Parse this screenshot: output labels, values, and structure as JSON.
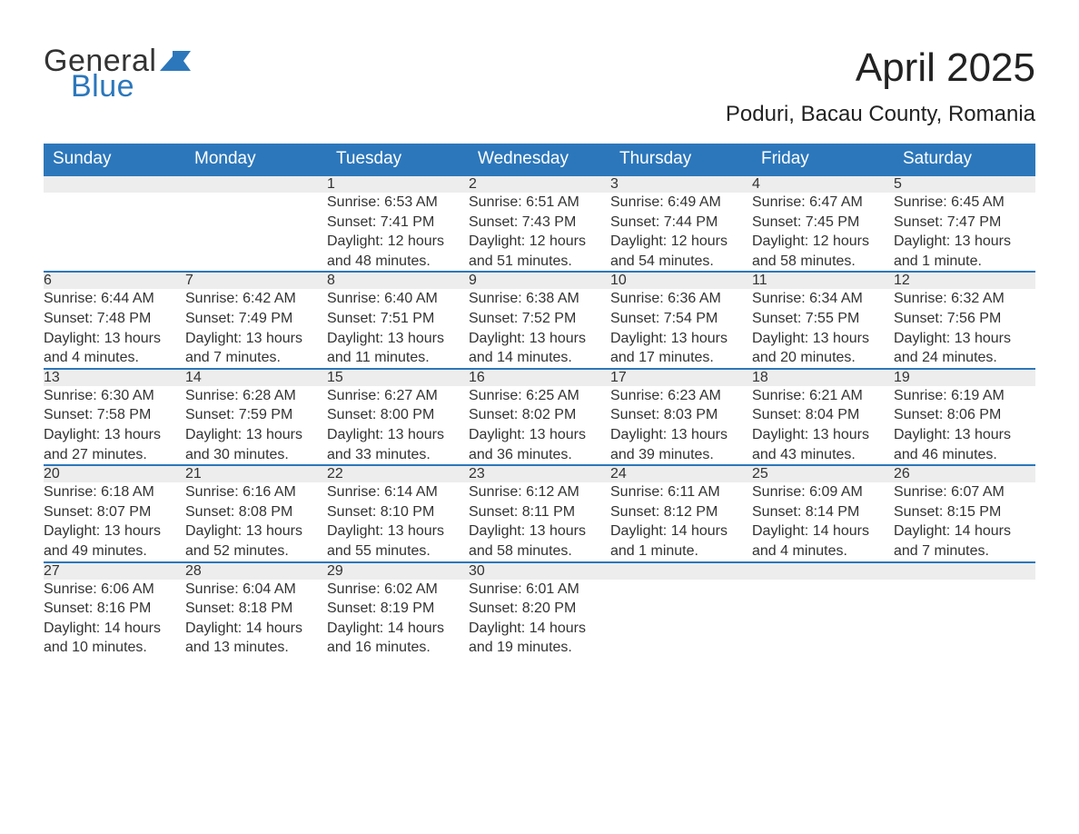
{
  "logo": {
    "word1": "General",
    "word2": "Blue",
    "flag_color": "#2c77bb"
  },
  "title": "April 2025",
  "location": "Poduri, Bacau County, Romania",
  "colors": {
    "header_bg": "#2c77bb",
    "header_fg": "#ffffff",
    "daynum_bg": "#ededed",
    "text": "#333333",
    "page_bg": "#ffffff"
  },
  "day_headers": [
    "Sunday",
    "Monday",
    "Tuesday",
    "Wednesday",
    "Thursday",
    "Friday",
    "Saturday"
  ],
  "weeks": [
    [
      null,
      null,
      {
        "n": "1",
        "sr": "6:53 AM",
        "ss": "7:41 PM",
        "dl": "12 hours and 48 minutes."
      },
      {
        "n": "2",
        "sr": "6:51 AM",
        "ss": "7:43 PM",
        "dl": "12 hours and 51 minutes."
      },
      {
        "n": "3",
        "sr": "6:49 AM",
        "ss": "7:44 PM",
        "dl": "12 hours and 54 minutes."
      },
      {
        "n": "4",
        "sr": "6:47 AM",
        "ss": "7:45 PM",
        "dl": "12 hours and 58 minutes."
      },
      {
        "n": "5",
        "sr": "6:45 AM",
        "ss": "7:47 PM",
        "dl": "13 hours and 1 minute."
      }
    ],
    [
      {
        "n": "6",
        "sr": "6:44 AM",
        "ss": "7:48 PM",
        "dl": "13 hours and 4 minutes."
      },
      {
        "n": "7",
        "sr": "6:42 AM",
        "ss": "7:49 PM",
        "dl": "13 hours and 7 minutes."
      },
      {
        "n": "8",
        "sr": "6:40 AM",
        "ss": "7:51 PM",
        "dl": "13 hours and 11 minutes."
      },
      {
        "n": "9",
        "sr": "6:38 AM",
        "ss": "7:52 PM",
        "dl": "13 hours and 14 minutes."
      },
      {
        "n": "10",
        "sr": "6:36 AM",
        "ss": "7:54 PM",
        "dl": "13 hours and 17 minutes."
      },
      {
        "n": "11",
        "sr": "6:34 AM",
        "ss": "7:55 PM",
        "dl": "13 hours and 20 minutes."
      },
      {
        "n": "12",
        "sr": "6:32 AM",
        "ss": "7:56 PM",
        "dl": "13 hours and 24 minutes."
      }
    ],
    [
      {
        "n": "13",
        "sr": "6:30 AM",
        "ss": "7:58 PM",
        "dl": "13 hours and 27 minutes."
      },
      {
        "n": "14",
        "sr": "6:28 AM",
        "ss": "7:59 PM",
        "dl": "13 hours and 30 minutes."
      },
      {
        "n": "15",
        "sr": "6:27 AM",
        "ss": "8:00 PM",
        "dl": "13 hours and 33 minutes."
      },
      {
        "n": "16",
        "sr": "6:25 AM",
        "ss": "8:02 PM",
        "dl": "13 hours and 36 minutes."
      },
      {
        "n": "17",
        "sr": "6:23 AM",
        "ss": "8:03 PM",
        "dl": "13 hours and 39 minutes."
      },
      {
        "n": "18",
        "sr": "6:21 AM",
        "ss": "8:04 PM",
        "dl": "13 hours and 43 minutes."
      },
      {
        "n": "19",
        "sr": "6:19 AM",
        "ss": "8:06 PM",
        "dl": "13 hours and 46 minutes."
      }
    ],
    [
      {
        "n": "20",
        "sr": "6:18 AM",
        "ss": "8:07 PM",
        "dl": "13 hours and 49 minutes."
      },
      {
        "n": "21",
        "sr": "6:16 AM",
        "ss": "8:08 PM",
        "dl": "13 hours and 52 minutes."
      },
      {
        "n": "22",
        "sr": "6:14 AM",
        "ss": "8:10 PM",
        "dl": "13 hours and 55 minutes."
      },
      {
        "n": "23",
        "sr": "6:12 AM",
        "ss": "8:11 PM",
        "dl": "13 hours and 58 minutes."
      },
      {
        "n": "24",
        "sr": "6:11 AM",
        "ss": "8:12 PM",
        "dl": "14 hours and 1 minute."
      },
      {
        "n": "25",
        "sr": "6:09 AM",
        "ss": "8:14 PM",
        "dl": "14 hours and 4 minutes."
      },
      {
        "n": "26",
        "sr": "6:07 AM",
        "ss": "8:15 PM",
        "dl": "14 hours and 7 minutes."
      }
    ],
    [
      {
        "n": "27",
        "sr": "6:06 AM",
        "ss": "8:16 PM",
        "dl": "14 hours and 10 minutes."
      },
      {
        "n": "28",
        "sr": "6:04 AM",
        "ss": "8:18 PM",
        "dl": "14 hours and 13 minutes."
      },
      {
        "n": "29",
        "sr": "6:02 AM",
        "ss": "8:19 PM",
        "dl": "14 hours and 16 minutes."
      },
      {
        "n": "30",
        "sr": "6:01 AM",
        "ss": "8:20 PM",
        "dl": "14 hours and 19 minutes."
      },
      null,
      null,
      null
    ]
  ],
  "labels": {
    "sunrise": "Sunrise: ",
    "sunset": "Sunset: ",
    "daylight": "Daylight: "
  }
}
